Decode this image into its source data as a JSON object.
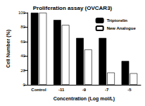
{
  "chart_data": {
    "type": "bar",
    "title": "Proliferation assay (OVCAR3)",
    "x_label": "Concentration (Log mol/L)",
    "y_label": "Cell Number (%)",
    "categories": [
      "Control",
      "-11",
      "-9",
      "-7",
      "-5"
    ],
    "series": [
      {
        "name": "Triptorelin",
        "color": "#000000",
        "values": [
          100,
          90,
          65,
          65,
          33
        ]
      },
      {
        "name": "New Analogue",
        "color": "#ffffff",
        "values": [
          100,
          83,
          49,
          17,
          16
        ]
      }
    ],
    "ylim": [
      0,
      100
    ],
    "yticks": [
      0,
      20,
      40,
      60,
      80,
      100
    ],
    "grid": false,
    "legend": "upper right"
  }
}
